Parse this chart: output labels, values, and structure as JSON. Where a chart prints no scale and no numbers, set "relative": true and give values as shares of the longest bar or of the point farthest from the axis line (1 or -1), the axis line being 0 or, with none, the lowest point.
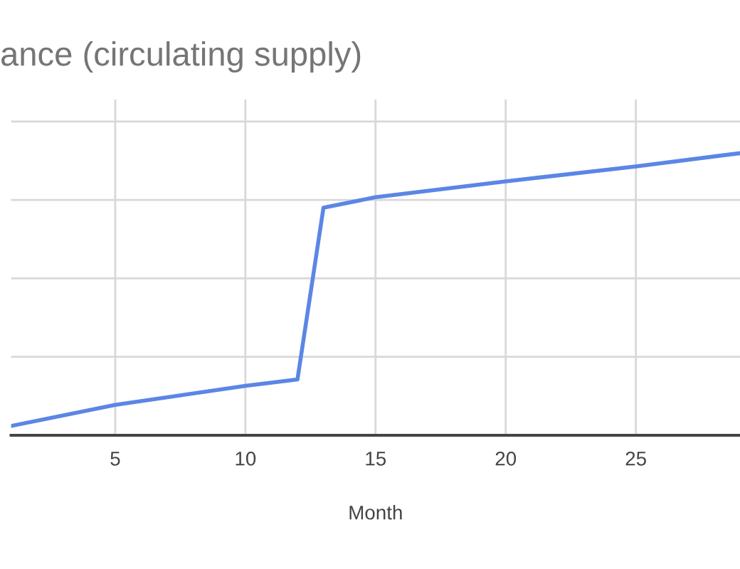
{
  "chart_data": {
    "type": "line",
    "title": "ance (circulating supply)",
    "xlabel": "Month",
    "x": [
      1,
      5,
      10,
      12,
      13,
      15,
      20,
      25,
      29
    ],
    "series": [
      {
        "color": "#5b86e5",
        "values": [
          0.033,
          0.108,
          0.175,
          0.198,
          0.807,
          0.844,
          0.9,
          0.953,
          1
        ]
      }
    ],
    "relative": true,
    "xlim": [
      1,
      29
    ],
    "xticks": [
      5,
      10,
      15,
      20,
      25
    ],
    "grid": true,
    "legend": false,
    "marker": "none",
    "line_style": "solid"
  }
}
